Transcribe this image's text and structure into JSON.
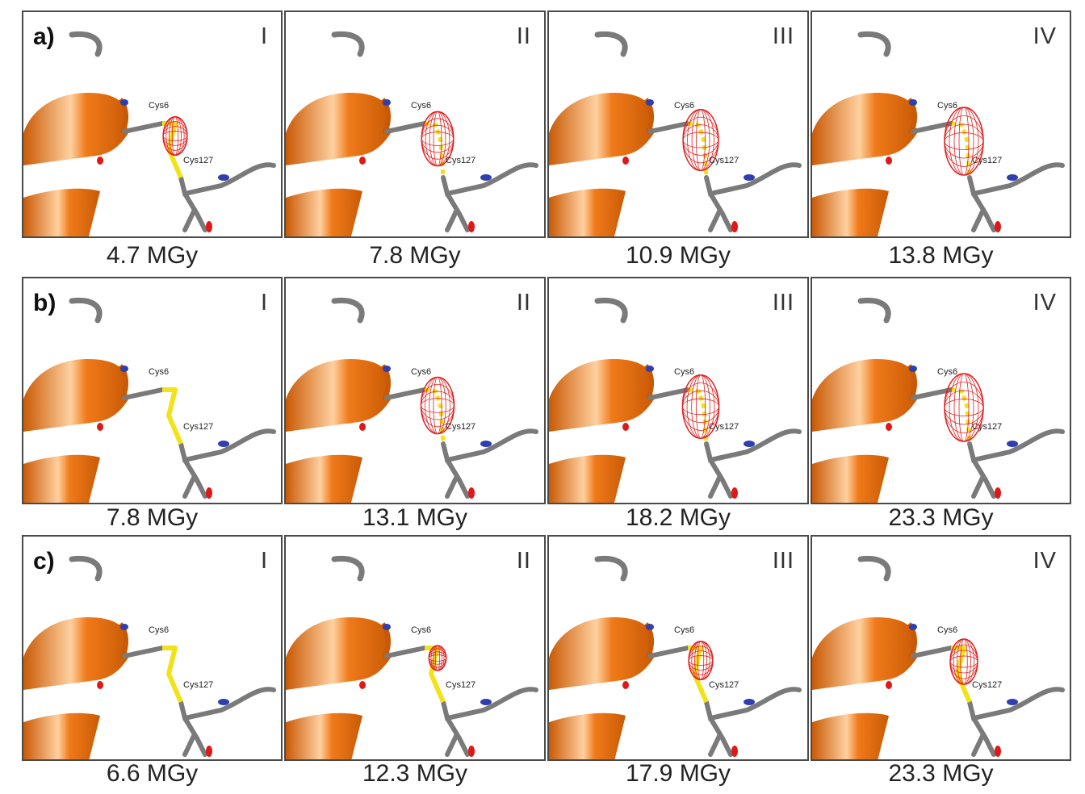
{
  "rows": [
    {
      "label": "a)",
      "panels": [
        {
          "roman": "I",
          "dose": "4.7 MGy",
          "density_level": 0.35,
          "bond_intact": true
        },
        {
          "roman": "II",
          "dose": "7.8 MGy",
          "density_level": 0.7,
          "bond_intact": false
        },
        {
          "roman": "III",
          "dose": "10.9 MGy",
          "density_level": 0.85,
          "bond_intact": false
        },
        {
          "roman": "IV",
          "dose": "13.8 MGy",
          "density_level": 1.0,
          "bond_intact": false
        }
      ]
    },
    {
      "label": "b)",
      "panels": [
        {
          "roman": "I",
          "dose": "7.8 MGy",
          "density_level": 0.0,
          "bond_intact": true
        },
        {
          "roman": "II",
          "dose": "13.1 MGy",
          "density_level": 0.75,
          "bond_intact": false
        },
        {
          "roman": "III",
          "dose": "18.2 MGy",
          "density_level": 0.9,
          "bond_intact": false
        },
        {
          "roman": "IV",
          "dose": "23.3 MGy",
          "density_level": 1.0,
          "bond_intact": false
        }
      ]
    },
    {
      "label": "c)",
      "panels": [
        {
          "roman": "I",
          "dose": "6.6 MGy",
          "density_level": 0.0,
          "bond_intact": true
        },
        {
          "roman": "II",
          "dose": "12.3 MGy",
          "density_level": 0.05,
          "bond_intact": true
        },
        {
          "roman": "III",
          "dose": "17.9 MGy",
          "density_level": 0.35,
          "bond_intact": true
        },
        {
          "roman": "IV",
          "dose": "23.3 MGy",
          "density_level": 0.5,
          "bond_intact": true
        }
      ]
    }
  ],
  "residue_labels": {
    "upper": "Cys6",
    "lower": "Cys127"
  },
  "colors": {
    "helix": "#f07a1a",
    "helix_dark": "#c95a05",
    "stick": "#7a7a7a",
    "sulfur": "#f2e21a",
    "mesh": "#e02020",
    "nitrogen": "#2f3fb0",
    "oxygen": "#e01818",
    "border": "#4a4a4a"
  }
}
